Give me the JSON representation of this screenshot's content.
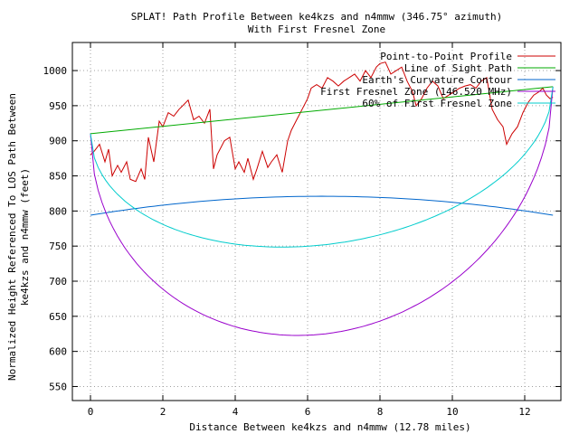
{
  "chart_data": {
    "type": "line",
    "title": "SPLAT! Path Profile Between ke4kzs and n4mmw (346.75° azimuth)",
    "subtitle": "With First Fresnel Zone",
    "xlabel": "Distance Between ke4kzs and n4mmw (12.78 miles)",
    "ylabel_line1": "Normalized Height Referenced To LOS Path Between",
    "ylabel_line2": "ke4kzs and n4mmw (feet)",
    "xlim": [
      -0.5,
      13.0
    ],
    "ylim": [
      530,
      1040
    ],
    "x_ticks": [
      0,
      2,
      4,
      6,
      8,
      10,
      12
    ],
    "y_ticks": [
      550,
      600,
      650,
      700,
      750,
      800,
      850,
      900,
      950,
      1000
    ],
    "grid": true,
    "legend_position": "top-right",
    "series": [
      {
        "name": "Point-to-Point Profile",
        "color": "#cc0000",
        "x": [
          0,
          0.1,
          0.25,
          0.4,
          0.5,
          0.6,
          0.75,
          0.85,
          1.0,
          1.1,
          1.25,
          1.4,
          1.5,
          1.6,
          1.75,
          1.9,
          2.0,
          2.15,
          2.3,
          2.45,
          2.55,
          2.7,
          2.85,
          3.0,
          3.15,
          3.3,
          3.4,
          3.5,
          3.6,
          3.7,
          3.85,
          4.0,
          4.1,
          4.25,
          4.35,
          4.5,
          4.6,
          4.75,
          4.9,
          5.0,
          5.15,
          5.3,
          5.45,
          5.55,
          5.7,
          5.85,
          6.0,
          6.1,
          6.25,
          6.4,
          6.55,
          6.7,
          6.85,
          7.0,
          7.15,
          7.3,
          7.45,
          7.6,
          7.75,
          7.9,
          8.0,
          8.15,
          8.3,
          8.45,
          8.6,
          8.75,
          8.9,
          9.0,
          9.15,
          9.3,
          9.45,
          9.6,
          9.75,
          9.9,
          10.05,
          10.2,
          10.35,
          10.5,
          10.65,
          10.8,
          10.95,
          11.1,
          11.25,
          11.4,
          11.5,
          11.65,
          11.8,
          11.95,
          12.1,
          12.25,
          12.4,
          12.5,
          12.6,
          12.7,
          12.78
        ],
        "y": [
          880,
          885,
          895,
          870,
          888,
          850,
          865,
          855,
          870,
          845,
          842,
          860,
          845,
          905,
          870,
          928,
          920,
          940,
          935,
          945,
          950,
          958,
          930,
          935,
          925,
          945,
          860,
          880,
          890,
          900,
          905,
          860,
          870,
          855,
          875,
          845,
          860,
          885,
          862,
          870,
          880,
          855,
          900,
          915,
          930,
          945,
          960,
          975,
          980,
          975,
          990,
          985,
          978,
          985,
          990,
          995,
          985,
          1000,
          990,
          1005,
          1010,
          1012,
          995,
          1000,
          1005,
          985,
          970,
          950,
          960,
          975,
          985,
          978,
          960,
          965,
          970,
          975,
          978,
          980,
          975,
          985,
          990,
          945,
          930,
          920,
          895,
          910,
          920,
          940,
          955,
          965,
          970,
          975,
          965,
          960,
          962
        ]
      },
      {
        "name": "Line of Sight Path",
        "color": "#00aa00",
        "x": [
          0,
          12.78
        ],
        "y": [
          910,
          977
        ]
      },
      {
        "name": "Earth's Curvature Contour",
        "color": "#0066cc",
        "x": [
          0,
          12.78
        ],
        "y": [
          794,
          794
        ],
        "peak": 821
      },
      {
        "name": "First Fresnel Zone (146.520 MHz)",
        "color": "#9900cc",
        "x": [
          0,
          12.78
        ],
        "y": [
          910,
          977
        ],
        "depth": 319
      },
      {
        "name": "60% of First Fresnel Zone",
        "color": "#00cccc",
        "x": [
          0,
          12.78
        ],
        "y": [
          910,
          977
        ],
        "depth": 192
      }
    ]
  }
}
